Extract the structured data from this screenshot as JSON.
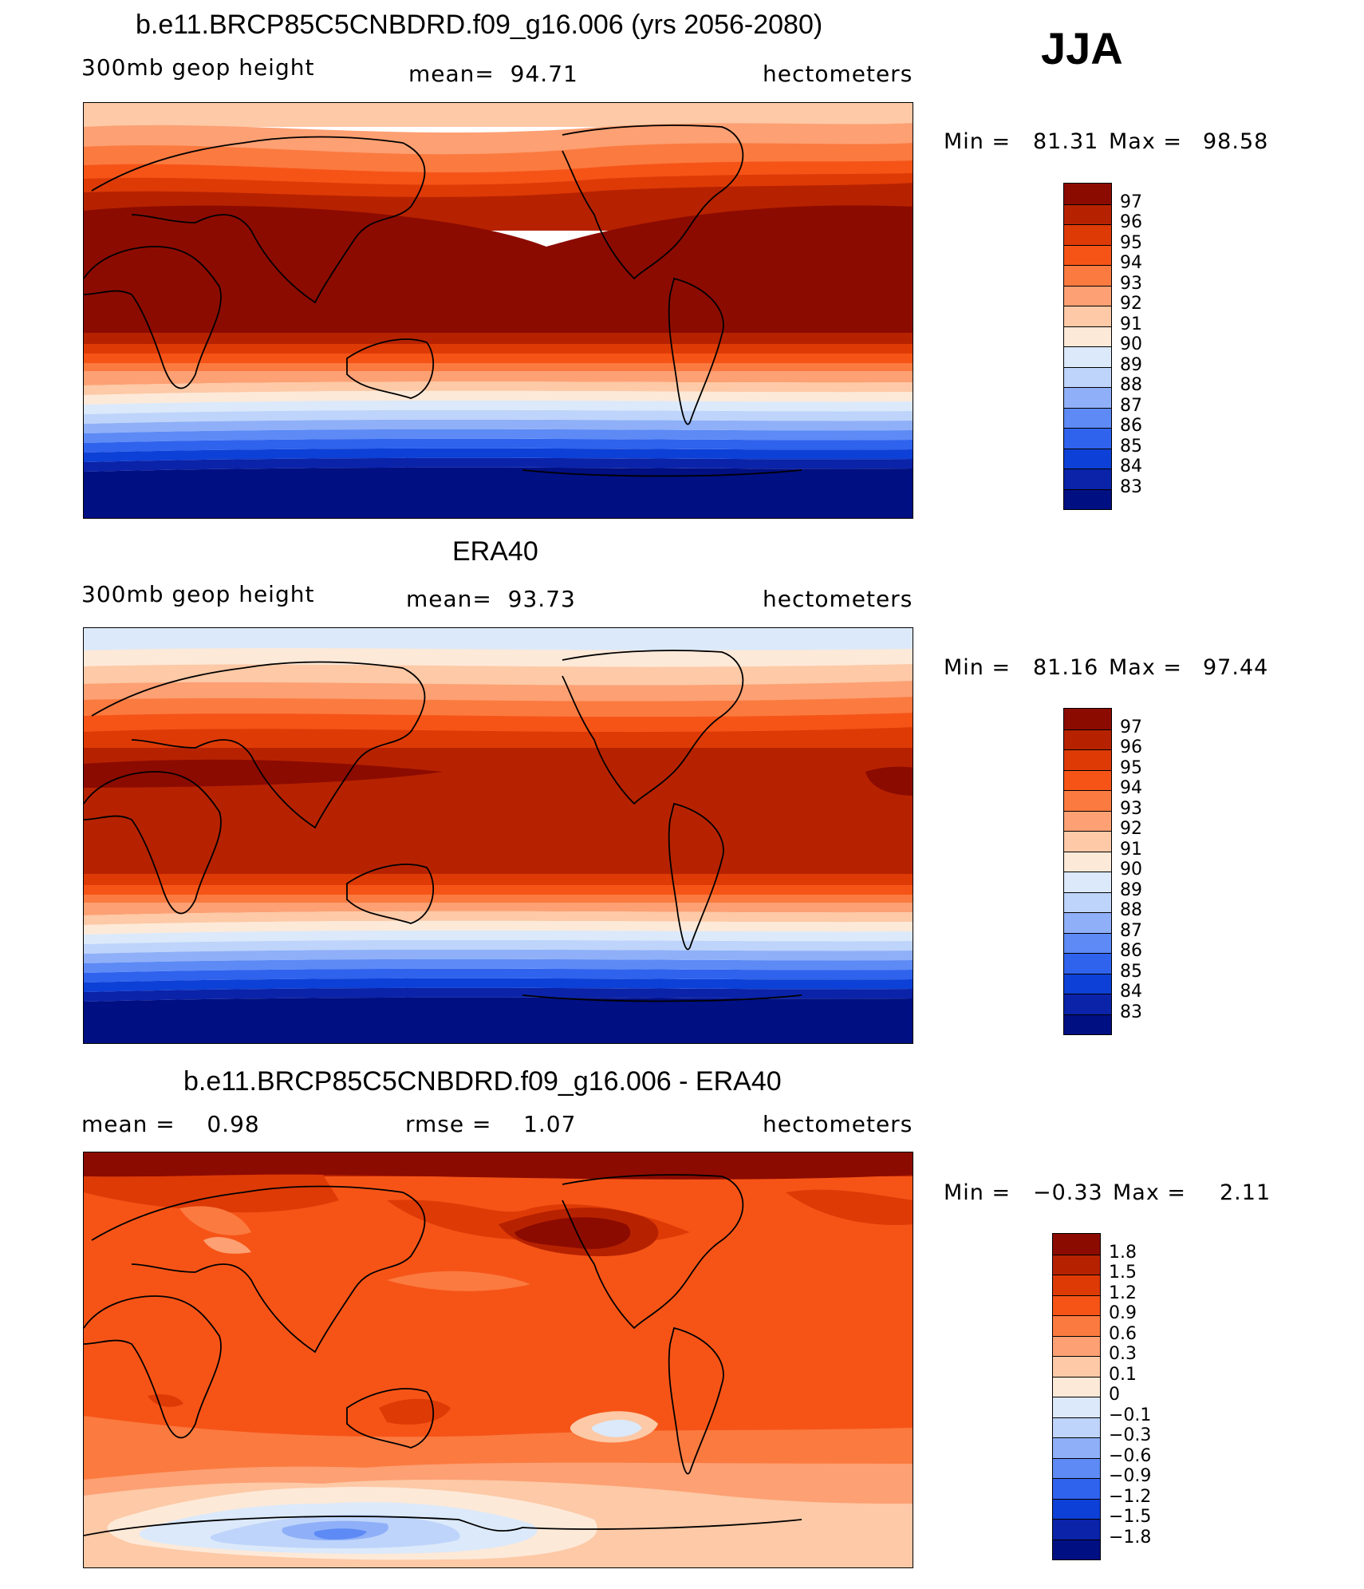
{
  "season": "JJA",
  "panels": [
    {
      "title": "b.e11.BRCP85C5CNBDRD.f09_g16.006 (yrs 2056-2080)",
      "left_label": "300mb geop height",
      "mid_label": "mean=  94.71",
      "units": "hectometers",
      "min_label": "Min =",
      "min_value": "81.31",
      "max_label": "Max =",
      "max_value": "98.58",
      "legend": {
        "ticks": [
          "97",
          "96",
          "95",
          "94",
          "93",
          "92",
          "91",
          "90",
          "89",
          "88",
          "87",
          "86",
          "85",
          "84",
          "83"
        ],
        "colors": [
          "#8c0b00",
          "#b62200",
          "#de3a06",
          "#f65417",
          "#fb7a40",
          "#fda073",
          "#fdc9a6",
          "#fde9d8",
          "#dbe9fa",
          "#bed4fa",
          "#8fb0f8",
          "#5d8af5",
          "#2f62ed",
          "#0d40d6",
          "#0a23a9",
          "#000f82"
        ]
      }
    },
    {
      "title": "ERA40",
      "left_label": "300mb geop height",
      "mid_label": "mean=  93.73",
      "units": "hectometers",
      "min_label": "Min =",
      "min_value": "81.16",
      "max_label": "Max =",
      "max_value": "97.44",
      "legend": {
        "ticks": [
          "97",
          "96",
          "95",
          "94",
          "93",
          "92",
          "91",
          "90",
          "89",
          "88",
          "87",
          "86",
          "85",
          "84",
          "83"
        ],
        "colors": [
          "#8c0b00",
          "#b62200",
          "#de3a06",
          "#f65417",
          "#fb7a40",
          "#fda073",
          "#fdc9a6",
          "#fde9d8",
          "#dbe9fa",
          "#bed4fa",
          "#8fb0f8",
          "#5d8af5",
          "#2f62ed",
          "#0d40d6",
          "#0a23a9",
          "#000f82"
        ]
      }
    },
    {
      "title": "b.e11.BRCP85C5CNBDRD.f09_g16.006 - ERA40",
      "left_label": "mean =    0.98",
      "mid_label": "rmse =    1.07",
      "units": "hectometers",
      "min_label": "Min =",
      "min_value": "−0.33",
      "max_label": "Max =",
      "max_value": "2.11",
      "legend": {
        "ticks": [
          "1.8",
          "1.5",
          "1.2",
          "0.9",
          "0.6",
          "0.3",
          "0.1",
          "0",
          "−0.1",
          "−0.3",
          "−0.6",
          "−0.9",
          "−1.2",
          "−1.5",
          "−1.8"
        ],
        "colors": [
          "#8c0b00",
          "#b62200",
          "#de3a06",
          "#f65417",
          "#fb7a40",
          "#fda073",
          "#fdc9a6",
          "#fde9d8",
          "#dbe9fa",
          "#bed4fa",
          "#8fb0f8",
          "#5d8af5",
          "#2f62ed",
          "#0d40d6",
          "#0a23a9",
          "#000f82"
        ]
      }
    }
  ]
}
